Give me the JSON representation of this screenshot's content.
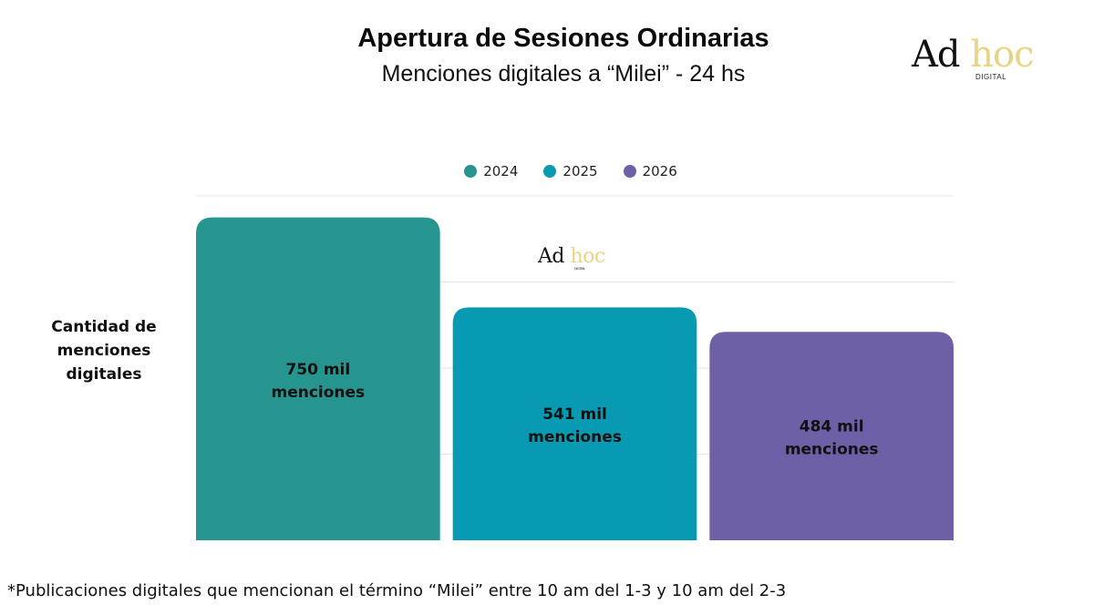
{
  "title": "Apertura de Sesiones Ordinarias",
  "subtitle": "Menciones digitales a “Milei” - 24 hs",
  "logo": {
    "ad": "Ad",
    "hoc": "hoc",
    "digital": "DIGITAL"
  },
  "ylabel": "Cantidad de menciones digitales",
  "footnote": "*Publicaciones digitales que mencionan el término “Milei” entre 10 am del 1-3 y 10 am del 2-3",
  "chart_data": {
    "type": "bar",
    "categories": [
      "2024",
      "2025",
      "2026"
    ],
    "values": [
      750000,
      541000,
      484000
    ],
    "data_labels": [
      [
        "750 mil",
        "menciones"
      ],
      [
        "541 mil",
        "menciones"
      ],
      [
        "484 mil",
        "menciones"
      ]
    ],
    "colors": [
      "#26958f",
      "#0899b3",
      "#6f5fa6"
    ],
    "ylabel": "Cantidad de menciones digitales",
    "ylim": [
      0,
      800000
    ],
    "grid": true,
    "legend": "top-center",
    "title": "Apertura de Sesiones Ordinarias",
    "subtitle": "Menciones digitales a “Milei” - 24 hs"
  }
}
